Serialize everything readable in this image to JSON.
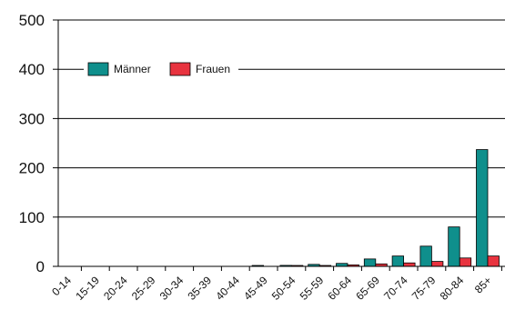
{
  "chart_data": {
    "type": "bar",
    "title": "",
    "xlabel": "",
    "ylabel": "",
    "ylim": [
      0,
      500
    ],
    "yticks": [
      0,
      100,
      200,
      300,
      400,
      500
    ],
    "grid": "horizontal",
    "legend_position": "top-left",
    "categories": [
      "0-14",
      "15-19",
      "20-24",
      "25-29",
      "30-34",
      "35-39",
      "40-44",
      "45-49",
      "50-54",
      "55-59",
      "60-64",
      "65-69",
      "70-74",
      "75-79",
      "80-84",
      "85+"
    ],
    "series": [
      {
        "name": "Männer",
        "color": "#0f8f8c",
        "values": [
          0,
          0,
          0,
          0,
          0,
          0,
          0,
          1,
          2,
          4,
          6,
          15,
          21,
          41,
          80,
          237
        ]
      },
      {
        "name": "Frauen",
        "color": "#e8333f",
        "values": [
          0,
          0,
          0,
          0,
          0,
          0,
          0,
          0,
          1,
          1,
          3,
          5,
          7,
          10,
          17,
          21
        ]
      }
    ]
  }
}
